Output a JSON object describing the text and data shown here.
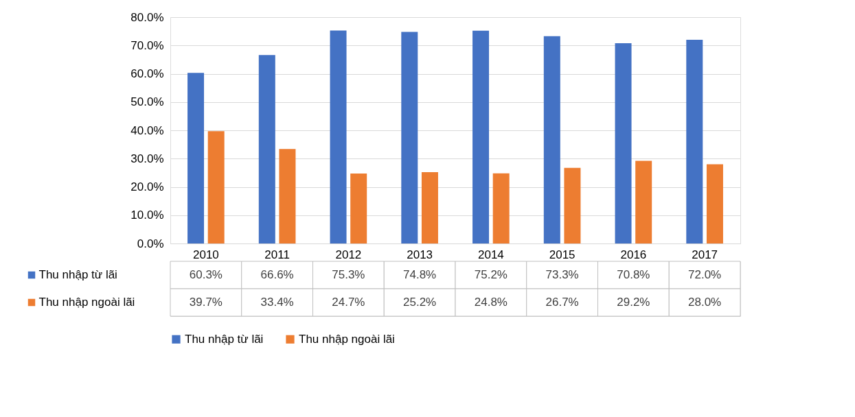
{
  "chart_data": {
    "type": "bar",
    "categories": [
      "2010",
      "2011",
      "2012",
      "2013",
      "2014",
      "2015",
      "2016",
      "2017"
    ],
    "series": [
      {
        "name": "Thu nhập từ lãi",
        "color": "#4472c4",
        "values": [
          60.3,
          66.6,
          75.3,
          74.8,
          75.2,
          73.3,
          70.8,
          72.0
        ],
        "value_labels": [
          "60.3%",
          "66.6%",
          "75.3%",
          "74.8%",
          "75.2%",
          "73.3%",
          "70.8%",
          "72.0%"
        ]
      },
      {
        "name": "Thu nhập ngoài lãi",
        "color": "#ed7d31",
        "values": [
          39.7,
          33.4,
          24.7,
          25.2,
          24.8,
          26.7,
          29.2,
          28.0
        ],
        "value_labels": [
          "39.7%",
          "33.4%",
          "24.7%",
          "25.2%",
          "24.8%",
          "26.7%",
          "29.2%",
          "28.0%"
        ]
      }
    ],
    "ylim": [
      0,
      80
    ],
    "yticks": [
      {
        "value": 0,
        "label": "0.0%"
      },
      {
        "value": 10,
        "label": "10.0%"
      },
      {
        "value": 20,
        "label": "20.0%"
      },
      {
        "value": 30,
        "label": "30.0%"
      },
      {
        "value": 40,
        "label": "40.0%"
      },
      {
        "value": 50,
        "label": "50.0%"
      },
      {
        "value": 60,
        "label": "60.0%"
      },
      {
        "value": 70,
        "label": "70.0%"
      },
      {
        "value": 80,
        "label": "80.0%"
      }
    ],
    "grid": "y",
    "legend": "bottom"
  }
}
